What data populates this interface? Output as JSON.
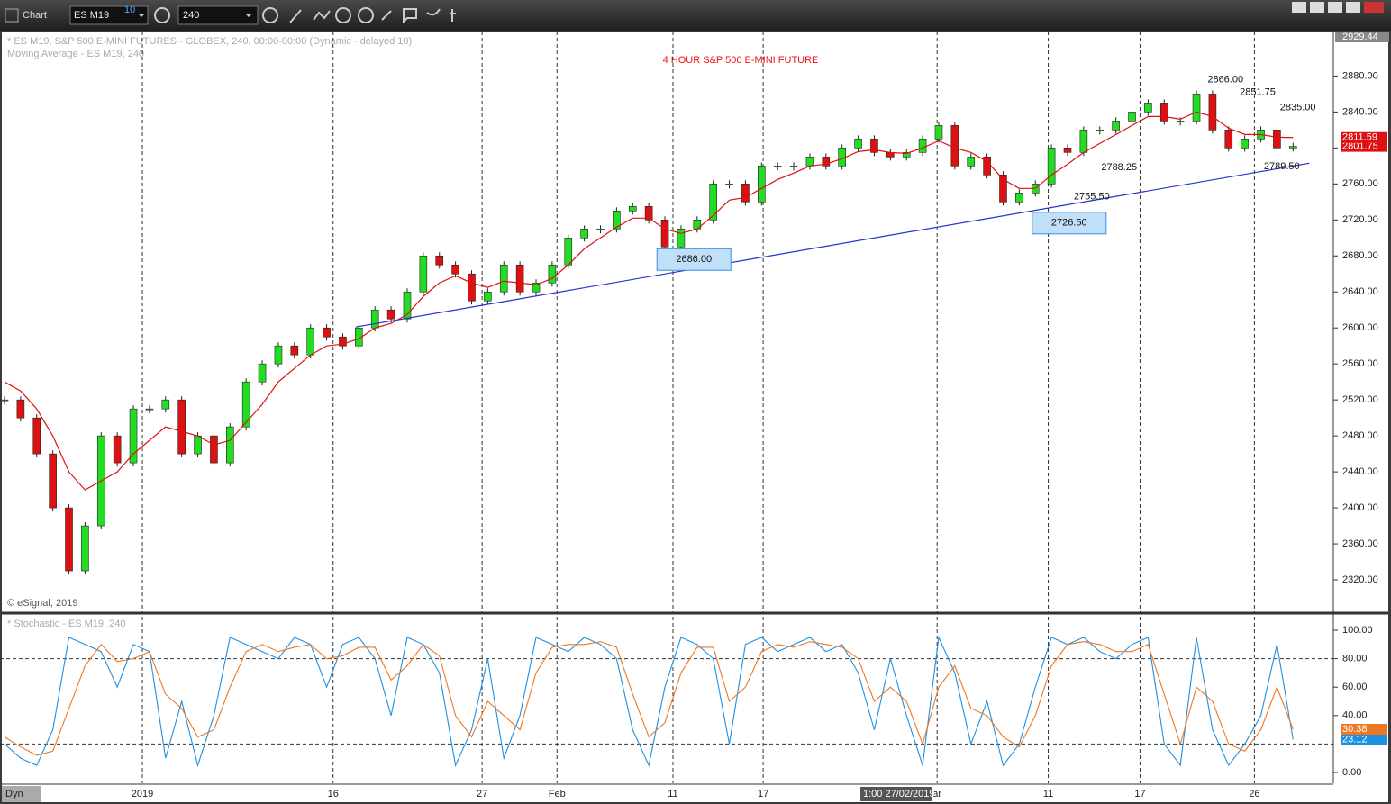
{
  "toolbar": {
    "title": "Chart",
    "symbol": "ES M19",
    "symbol_badge": "10",
    "interval": "240"
  },
  "chart_data": {
    "type": "candlestick",
    "title": "4 HOUR  S&P 500 E-MINI FUTURE",
    "title_color": "#ee1111",
    "legend": [
      "* ES M19, S&P 500 E-MINI FUTURES - GLOBEX, 240, 00:00-00:00 (Dynamic - delayed 10)",
      "Moving Average - ES M19, 240"
    ],
    "copyright": "© eSignal, 2019",
    "xlim": [
      -0.28,
      82.5
    ],
    "xticks": [
      {
        "value": 8.56,
        "label": "2019"
      },
      {
        "value": 20.4,
        "label": "16"
      },
      {
        "value": 29.65,
        "label": "27"
      },
      {
        "value": 34.3,
        "label": "Feb"
      },
      {
        "value": 41.5,
        "label": "11"
      },
      {
        "value": 47.1,
        "label": "17"
      },
      {
        "value": 57.9,
        "label": "ar"
      },
      {
        "value": 64.8,
        "label": "11"
      },
      {
        "value": 70.5,
        "label": "17"
      },
      {
        "value": 77.6,
        "label": "26"
      }
    ],
    "ylim": [
      2284,
      2929.44
    ],
    "yticks": [
      {
        "value": 2320,
        "label": "2320.00"
      },
      {
        "value": 2360,
        "label": "2360.00"
      },
      {
        "value": 2400,
        "label": "2400.00"
      },
      {
        "value": 2440,
        "label": "2440.00"
      },
      {
        "value": 2480,
        "label": "2480.00"
      },
      {
        "value": 2520,
        "label": "2520.00"
      },
      {
        "value": 2560,
        "label": "2560.00"
      },
      {
        "value": 2600,
        "label": "2600.00"
      },
      {
        "value": 2640,
        "label": "2640.00"
      },
      {
        "value": 2680,
        "label": "2680.00"
      },
      {
        "value": 2720,
        "label": "2720.00"
      },
      {
        "value": 2760,
        "label": "2760.00"
      },
      {
        "value": 2800,
        "label": "2800.00"
      },
      {
        "value": 2840,
        "label": "2840.00"
      },
      {
        "value": 2880,
        "label": "2880.00"
      }
    ],
    "top_marker": {
      "value": 2929.44,
      "label": "2929.44"
    },
    "up_color": "#22dd22",
    "down_color": "#dd1111",
    "closes": {
      "values": [
        2520,
        2500,
        2460,
        2400,
        2330,
        2380,
        2480,
        2450,
        2510,
        2510,
        2520,
        2460,
        2480,
        2450,
        2490,
        2540,
        2560,
        2580,
        2570,
        2600,
        2590,
        2580,
        2600,
        2620,
        2610,
        2640,
        2680,
        2670,
        2660,
        2630,
        2640,
        2670,
        2640,
        2650,
        2670,
        2700,
        2710,
        2710,
        2730,
        2735,
        2720,
        2690,
        2710,
        2720,
        2760,
        2760,
        2740,
        2780,
        2780,
        2780,
        2790,
        2780,
        2800,
        2810,
        2795,
        2790,
        2795,
        2810,
        2825,
        2780,
        2790,
        2770,
        2740,
        2750,
        2760,
        2800,
        2795,
        2820,
        2820,
        2830,
        2840,
        2850,
        2830,
        2830,
        2860,
        2820,
        2800,
        2810,
        2820,
        2800,
        2801.75
      ],
      "last_label": "2801.75"
    },
    "moving_average": {
      "color": "#dd1111",
      "values": [
        2540,
        2530,
        2510,
        2480,
        2440,
        2420,
        2430,
        2440,
        2460,
        2475,
        2490,
        2485,
        2480,
        2470,
        2475,
        2495,
        2515,
        2540,
        2555,
        2570,
        2580,
        2582,
        2588,
        2600,
        2605,
        2615,
        2635,
        2650,
        2658,
        2650,
        2645,
        2652,
        2650,
        2648,
        2655,
        2670,
        2688,
        2700,
        2712,
        2722,
        2722,
        2710,
        2705,
        2710,
        2725,
        2742,
        2745,
        2755,
        2765,
        2772,
        2780,
        2782,
        2788,
        2796,
        2798,
        2795,
        2794,
        2800,
        2808,
        2800,
        2795,
        2785,
        2765,
        2755,
        2755,
        2770,
        2782,
        2795,
        2805,
        2815,
        2825,
        2835,
        2835,
        2832,
        2840,
        2835,
        2822,
        2815,
        2815,
        2812,
        2811.59
      ],
      "last_label": "2811.59"
    },
    "trendline": {
      "color": "#2233cc",
      "x": [
        21.8,
        81
      ],
      "values": [
        2601,
        2783
      ]
    },
    "annotations": [
      {
        "label": "2686.00",
        "value": 2686,
        "x": 42.8,
        "position": "below",
        "boxed": true
      },
      {
        "label": "2726.50",
        "value": 2726.5,
        "x": 66.1,
        "position": "below",
        "boxed": true
      },
      {
        "label": "2755.50",
        "value": 2755.5,
        "x": 67.5,
        "position": "below",
        "boxed": false
      },
      {
        "label": "2788.25",
        "value": 2788.25,
        "x": 69.2,
        "position": "below",
        "boxed": false
      },
      {
        "label": "2866.00",
        "value": 2866,
        "x": 75.8,
        "position": "above",
        "boxed": false
      },
      {
        "label": "2851.75",
        "value": 2851.75,
        "x": 77.8,
        "position": "above",
        "boxed": false
      },
      {
        "label": "2835.00",
        "value": 2835,
        "x": 80.3,
        "position": "above",
        "boxed": false
      },
      {
        "label": "2789.50",
        "value": 2789.5,
        "x": 79.3,
        "position": "below",
        "boxed": false
      }
    ],
    "stochastic": {
      "legend": "* Stochastic - ES M19, 240",
      "ylim": [
        -7.6,
        109.5
      ],
      "yticks": [
        {
          "value": 0,
          "label": "0.00"
        },
        {
          "value": 40,
          "label": "40.00"
        },
        {
          "value": 60,
          "label": "60.00"
        },
        {
          "value": 80,
          "label": "80.00"
        },
        {
          "value": 100,
          "label": "100.00"
        }
      ],
      "levels": [
        20,
        80
      ],
      "series": [
        {
          "color": "#1e90e0",
          "values": [
            20,
            10,
            5,
            30,
            95,
            90,
            85,
            60,
            90,
            85,
            10,
            50,
            5,
            40,
            95,
            90,
            85,
            80,
            95,
            90,
            60,
            90,
            95,
            80,
            40,
            95,
            90,
            70,
            5,
            30,
            80,
            10,
            40,
            95,
            90,
            85,
            95,
            90,
            80,
            30,
            5,
            60,
            95,
            90,
            80,
            20,
            90,
            95,
            85,
            90,
            95,
            85,
            90,
            70,
            30,
            80,
            40,
            5,
            95,
            70,
            20,
            50,
            5,
            20,
            60,
            95,
            90,
            95,
            85,
            80,
            90,
            95,
            20,
            5,
            95,
            30,
            5,
            20,
            40,
            90,
            23.12
          ],
          "last_label": "23.12"
        },
        {
          "color": "#ee7722",
          "values": [
            25,
            18,
            12,
            15,
            45,
            75,
            90,
            78,
            80,
            85,
            55,
            45,
            25,
            30,
            60,
            85,
            90,
            85,
            88,
            90,
            80,
            82,
            88,
            88,
            65,
            75,
            90,
            82,
            40,
            25,
            50,
            40,
            30,
            70,
            88,
            90,
            90,
            92,
            88,
            55,
            25,
            35,
            70,
            88,
            88,
            50,
            60,
            85,
            90,
            88,
            92,
            90,
            88,
            80,
            50,
            60,
            50,
            20,
            60,
            75,
            45,
            40,
            25,
            18,
            40,
            75,
            90,
            92,
            90,
            85,
            85,
            90,
            55,
            20,
            60,
            50,
            20,
            15,
            30,
            60,
            30.38
          ],
          "last_label": "30.38"
        }
      ]
    },
    "status": "Dyn",
    "crosshair_label": "1:00 27/02/2019"
  }
}
